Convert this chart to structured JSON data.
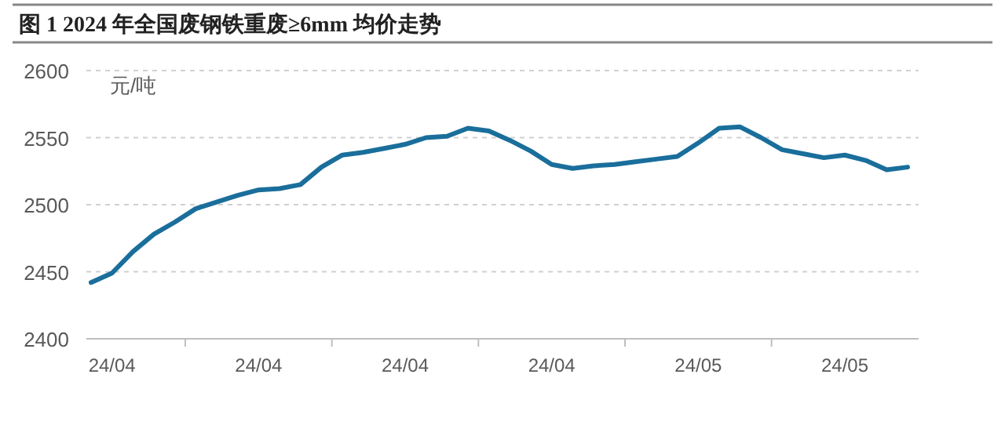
{
  "chart_data": {
    "type": "line",
    "title": "图 1 2024 年全国废钢铁重废≥6mm 均价走势",
    "ylabel": "元/吨",
    "categories": [
      null,
      "24/04",
      null,
      null,
      null,
      null,
      null,
      null,
      "24/04",
      null,
      null,
      null,
      null,
      null,
      null,
      "24/04",
      null,
      null,
      null,
      null,
      null,
      null,
      "24/04",
      null,
      null,
      null,
      null,
      null,
      null,
      "24/05",
      null,
      null,
      null,
      null,
      null,
      null,
      "24/05",
      null,
      null,
      null
    ],
    "series": [
      {
        "color": "#1a6e9b",
        "values": [
          2442,
          2449,
          2465,
          2478,
          2487,
          2497,
          2502,
          2507,
          2511,
          2512,
          2515,
          2528,
          2537,
          2539,
          2542,
          2545,
          2550,
          2551,
          2557,
          2555,
          2548,
          2540,
          2530,
          2527,
          2529,
          2530,
          2532,
          2534,
          2536,
          2546,
          2557,
          2558,
          2550,
          2541,
          2538,
          2535,
          2537,
          2533,
          2526,
          2528
        ]
      }
    ],
    "ylim": [
      2400,
      2600
    ],
    "yticks": [
      2400,
      2450,
      2500,
      2550,
      2600
    ],
    "grid": "y",
    "marker": "none",
    "line_style": "solid"
  }
}
